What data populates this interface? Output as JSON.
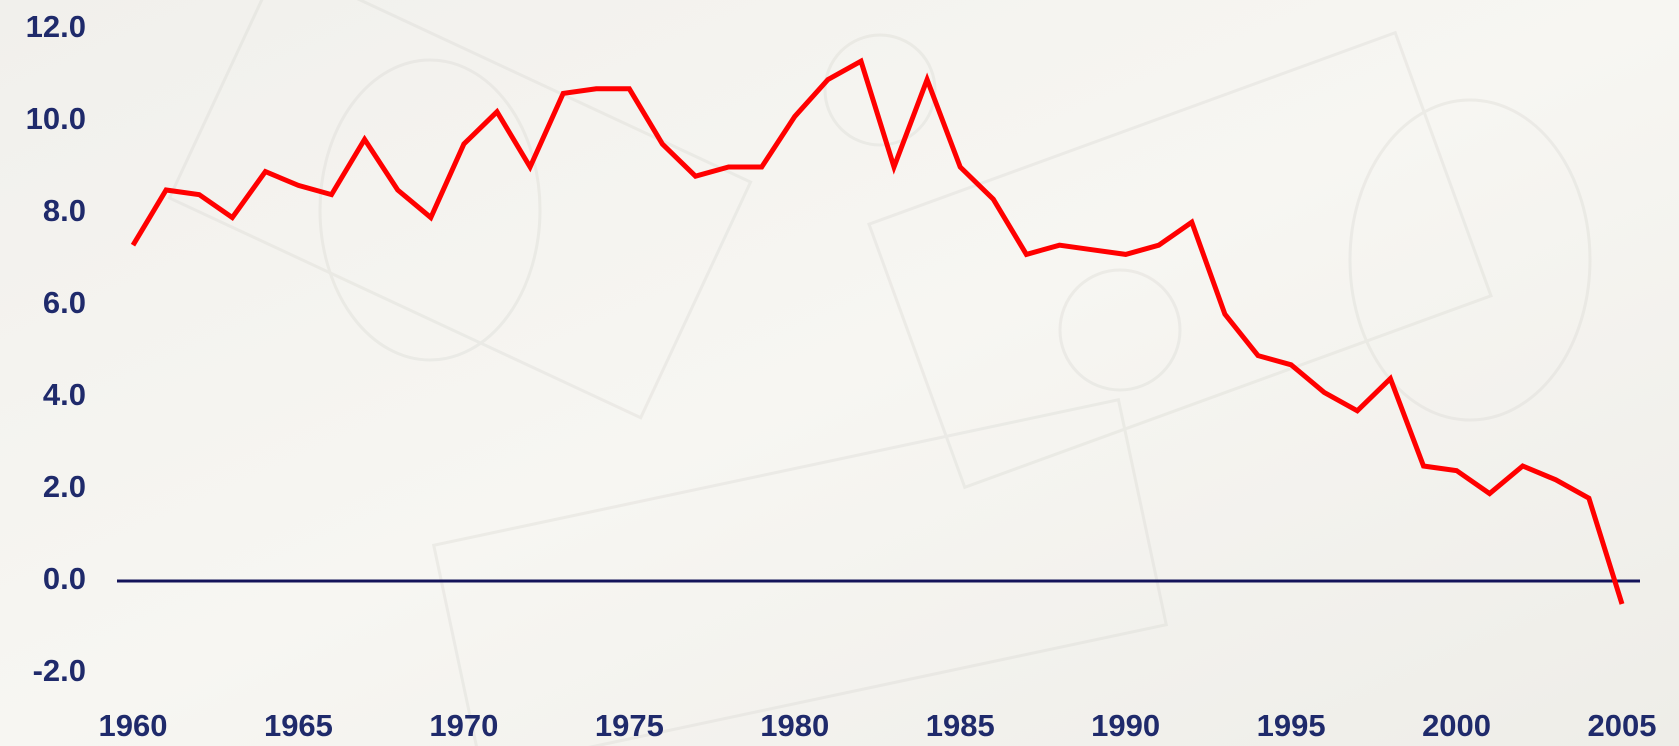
{
  "chart_data": {
    "type": "line",
    "x": [
      1960,
      1961,
      1962,
      1963,
      1964,
      1965,
      1966,
      1967,
      1968,
      1969,
      1970,
      1971,
      1972,
      1973,
      1974,
      1975,
      1976,
      1977,
      1978,
      1979,
      1980,
      1981,
      1982,
      1983,
      1984,
      1985,
      1986,
      1987,
      1988,
      1989,
      1990,
      1991,
      1992,
      1993,
      1994,
      1995,
      1996,
      1997,
      1998,
      1999,
      2000,
      2001,
      2002,
      2003,
      2004,
      2005
    ],
    "values": [
      7.3,
      8.5,
      8.4,
      7.9,
      8.9,
      8.6,
      8.4,
      9.6,
      8.5,
      7.9,
      9.5,
      10.2,
      9.0,
      10.6,
      10.7,
      10.7,
      9.5,
      8.8,
      9.0,
      9.0,
      10.1,
      10.9,
      11.3,
      9.0,
      10.9,
      9.0,
      8.3,
      7.1,
      7.3,
      7.2,
      7.1,
      7.3,
      7.8,
      5.8,
      4.9,
      4.7,
      4.1,
      3.7,
      4.4,
      2.5,
      2.4,
      1.9,
      2.5,
      2.2,
      1.8,
      -0.5
    ],
    "color": "#ff0000",
    "xlim": [
      1960,
      2005
    ],
    "xticks": [
      1960,
      1965,
      1970,
      1975,
      1980,
      1985,
      1990,
      1995,
      2000,
      2005
    ],
    "ylim": [
      -2,
      12
    ],
    "yticks": [
      {
        "value": 12,
        "label": "12.0"
      },
      {
        "value": 10,
        "label": "10.0"
      },
      {
        "value": 8,
        "label": "8.0"
      },
      {
        "value": 6,
        "label": "6.0"
      },
      {
        "value": 4,
        "label": "4.0"
      },
      {
        "value": 2,
        "label": "2.0"
      },
      {
        "value": 0,
        "label": "0.0"
      },
      {
        "value": -2,
        "label": "-2.0"
      }
    ]
  }
}
